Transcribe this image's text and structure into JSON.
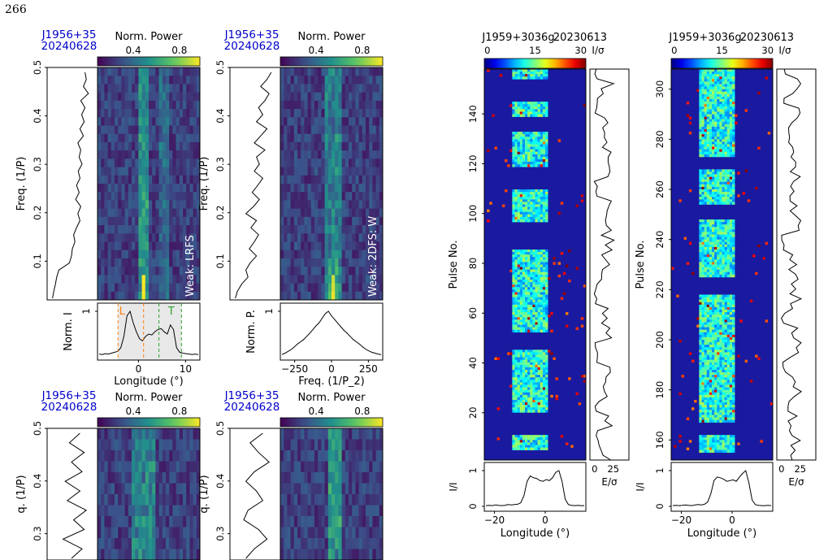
{
  "page_number": "266",
  "colors": {
    "frame": "#000000",
    "title_blue": "#0000cc",
    "onset_orange": "#ff7f0e",
    "trail_green": "#2ca02c"
  },
  "chart_data": [
    {
      "type": "heatmap",
      "id": "lrfs-top",
      "pulsar": "J1956+35",
      "date": "20240628",
      "cbar_label": "Norm. Power",
      "cbar_ticks": [
        "0.4",
        "0.8"
      ],
      "ylabel": "Freq. (1/P_3)",
      "yticks": [
        "0.1",
        "0.2",
        "0.3",
        "0.4",
        "0.5"
      ],
      "ylim": [
        0.02,
        0.5
      ],
      "annotation": "Weak: LRFS",
      "profile_ylabel": "Norm. I",
      "profile_ytick": "1",
      "xlabel": "Longitude (°)",
      "xticks": [
        "0",
        "10"
      ],
      "onset_label": "L",
      "trail_label": "T",
      "side_profile": [
        0.05,
        0.08,
        0.12,
        0.15,
        0.2,
        0.45,
        0.5,
        0.52,
        0.58,
        0.55,
        0.62,
        0.7,
        0.65,
        0.72,
        0.6,
        0.68,
        0.62,
        0.7,
        0.66,
        0.75,
        0.68,
        0.72,
        0.65,
        0.78,
        0.7,
        0.8,
        0.74,
        0.82,
        0.72,
        0.9,
        0.78,
        0.85,
        0.82
      ],
      "profile": [
        0.06,
        0.05,
        0.07,
        0.06,
        0.08,
        0.1,
        0.12,
        0.2,
        0.45,
        0.9,
        1.0,
        0.75,
        0.55,
        0.4,
        0.35,
        0.45,
        0.5,
        0.48,
        0.55,
        0.6,
        0.62,
        0.55,
        0.5,
        0.7,
        0.6,
        0.2,
        0.1,
        0.08,
        0.07,
        0.06,
        0.05,
        0.06,
        0.05
      ]
    },
    {
      "type": "heatmap",
      "id": "2dfs-top",
      "pulsar": "J1956+35",
      "date": "20240628",
      "cbar_label": "Norm. Power",
      "cbar_ticks": [
        "0.4",
        "0.8"
      ],
      "ylabel": "Freq. (1/P_3)",
      "yticks": [
        "0.1",
        "0.2",
        "0.3",
        "0.4",
        "0.5"
      ],
      "ylim": [
        0.02,
        0.5
      ],
      "annotation": "Weak: 2DFS: W",
      "profile_ylabel": "Norm. P.",
      "profile_ytick": "1",
      "xlabel": "Freq. (1/P_2)",
      "xticks": [
        "−250",
        "0",
        "250"
      ],
      "side_profile": [
        0.05,
        0.1,
        0.2,
        0.35,
        0.3,
        0.4,
        0.55,
        0.38,
        0.5,
        0.6,
        0.42,
        0.55,
        0.3,
        0.48,
        0.62,
        0.45,
        0.58,
        0.7,
        0.5,
        0.62,
        0.55,
        0.75,
        0.5,
        0.65,
        0.8,
        0.55,
        0.7,
        0.6,
        0.75,
        0.85,
        0.65,
        0.8,
        0.9
      ],
      "profile": [
        0.05,
        0.08,
        0.12,
        0.16,
        0.22,
        0.28,
        0.33,
        0.38,
        0.45,
        0.52,
        0.6,
        0.68,
        0.75,
        0.85,
        0.95,
        1.0,
        0.9,
        0.82,
        0.74,
        0.66,
        0.58,
        0.52,
        0.45,
        0.38,
        0.33,
        0.28,
        0.22,
        0.17,
        0.13,
        0.1,
        0.08,
        0.06,
        0.05
      ]
    },
    {
      "type": "heatmap",
      "id": "lrfs-bottom",
      "pulsar": "J1956+35",
      "date": "20240628",
      "cbar_label": "Norm. Power",
      "cbar_ticks": [
        "0.4",
        "0.8"
      ],
      "ylabel": "q. (1/P_3)",
      "yticks": [
        "0.3",
        "0.4",
        "0.5"
      ],
      "ylim": [
        0.25,
        0.5
      ],
      "side_profile": [
        0.5,
        0.75,
        0.3,
        0.8,
        0.55,
        0.85,
        0.4,
        0.7,
        0.35,
        0.75,
        0.5,
        0.8,
        0.45,
        0.7
      ]
    },
    {
      "type": "heatmap",
      "id": "2dfs-bottom",
      "pulsar": "J1956+35",
      "date": "20240628",
      "cbar_label": "Norm. Power",
      "cbar_ticks": [
        "0.4",
        "0.8"
      ],
      "ylabel": "q. (1/P_3)",
      "yticks": [
        "0.3",
        "0.4",
        "0.5"
      ],
      "ylim": [
        0.25,
        0.5
      ],
      "side_profile": [
        0.3,
        0.5,
        0.8,
        0.6,
        0.25,
        0.35,
        0.7,
        0.55,
        0.3,
        0.5,
        0.85,
        0.6,
        0.4,
        0.7
      ]
    },
    {
      "type": "heatmap",
      "id": "stack-1",
      "pulsar": "J1959+3036g",
      "date": "20230613",
      "cbar_label": "I/σ_bin",
      "cbar_ticks": [
        "0",
        "15",
        "30"
      ],
      "ylabel": "Pulse No.",
      "yticks": [
        "20",
        "40",
        "60",
        "80",
        "100",
        "120",
        "140"
      ],
      "ylim": [
        1,
        158
      ],
      "side_xlabel": "E/σ_E",
      "side_xticks": [
        "0",
        "25"
      ],
      "profile_ylabel": "I/I_peak",
      "profile_yticks": [
        "0",
        "1"
      ],
      "xlabel": "Longitude (°)",
      "xticks": [
        "−20",
        "0"
      ],
      "profile": [
        0.02,
        0.03,
        0.02,
        0.04,
        0.03,
        0.02,
        0.03,
        0.05,
        0.04,
        0.05,
        0.06,
        0.1,
        0.3,
        0.7,
        0.85,
        0.8,
        0.78,
        0.72,
        0.7,
        0.75,
        0.72,
        0.8,
        0.95,
        1.0,
        0.7,
        0.2,
        0.05,
        0.03,
        0.02,
        0.03,
        0.02,
        0.02
      ]
    },
    {
      "type": "heatmap",
      "id": "stack-2",
      "pulsar": "J1959+3036g",
      "date": "20230613",
      "cbar_label": "I/σ_bin",
      "cbar_ticks": [
        "0",
        "15",
        "30"
      ],
      "ylabel": "Pulse No.",
      "yticks": [
        "160",
        "180",
        "200",
        "220",
        "240",
        "260",
        "280",
        "300"
      ],
      "ylim": [
        152,
        308
      ],
      "side_xlabel": "E/σ_E",
      "side_xticks": [
        "0",
        "25"
      ],
      "profile_ylabel": "I/I_peak",
      "profile_yticks": [
        "0",
        "1"
      ],
      "xlabel": "Longitude (°)",
      "xticks": [
        "−20",
        "0"
      ],
      "profile": [
        0.02,
        0.03,
        0.02,
        0.03,
        0.04,
        0.03,
        0.02,
        0.04,
        0.05,
        0.04,
        0.06,
        0.12,
        0.35,
        0.72,
        0.82,
        0.8,
        0.76,
        0.7,
        0.72,
        0.74,
        0.7,
        0.82,
        0.92,
        1.0,
        0.65,
        0.18,
        0.05,
        0.03,
        0.02,
        0.02,
        0.03,
        0.02
      ]
    }
  ]
}
